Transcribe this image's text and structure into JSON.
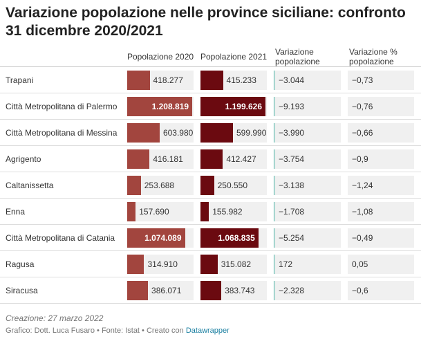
{
  "header": {
    "title": "Variazione popolazione nelle province siciliane: confronto 31 dicembre 2020/2021"
  },
  "table": {
    "columns": [
      "Popolazione 2020",
      "Popolazione 2021",
      "Variazione popolazione",
      "Variazione % popolazione"
    ],
    "colors": [
      "#a2453e",
      "#6b0a10"
    ],
    "rows": [
      {
        "label": "Trapani",
        "values": [
          418277,
          415233,
          -3044,
          -0.73
        ],
        "value_labels": [
          "418.277",
          "415.233",
          "−3.044",
          "−0,73"
        ]
      },
      {
        "label": "Città Metropolitana di Palermo",
        "values": [
          1208819,
          1199626,
          -9193,
          -0.76
        ],
        "value_labels": [
          "1.208.819",
          "1.199.626",
          "−9.193",
          "−0,76"
        ]
      },
      {
        "label": "Città Metropolitana di Messina",
        "values": [
          603980,
          599990,
          -3990,
          -0.66
        ],
        "value_labels": [
          "603.980",
          "599.990",
          "−3.990",
          "−0,66"
        ]
      },
      {
        "label": "Agrigento",
        "values": [
          416181,
          412427,
          -3754,
          -0.9
        ],
        "value_labels": [
          "416.181",
          "412.427",
          "−3.754",
          "−0,9"
        ]
      },
      {
        "label": "Caltanissetta",
        "values": [
          253688,
          250550,
          -3138,
          -1.24
        ],
        "value_labels": [
          "253.688",
          "250.550",
          "−3.138",
          "−1,24"
        ]
      },
      {
        "label": "Enna",
        "values": [
          157690,
          155982,
          -1708,
          -1.08
        ],
        "value_labels": [
          "157.690",
          "155.982",
          "−1.708",
          "−1,08"
        ]
      },
      {
        "label": "Città Metropolitana di Catania",
        "values": [
          1074089,
          1068835,
          -5254,
          -0.49
        ],
        "value_labels": [
          "1.074.089",
          "1.068.835",
          "−5.254",
          "−0,49"
        ]
      },
      {
        "label": "Ragusa",
        "values": [
          314910,
          315082,
          172,
          0.05
        ],
        "value_labels": [
          "314.910",
          "315.082",
          "172",
          "0,05"
        ]
      },
      {
        "label": "Siracusa",
        "values": [
          386071,
          383743,
          -2328,
          -0.6
        ],
        "value_labels": [
          "386.071",
          "383.743",
          "−2.328",
          "−0,6"
        ]
      }
    ]
  },
  "footer": {
    "created": "Creazione: 27 marzo 2022",
    "byline": "Grafico: Dott. Luca Fusaro • Fonte: Istat • Creato con",
    "link": "Datawrapper"
  }
}
